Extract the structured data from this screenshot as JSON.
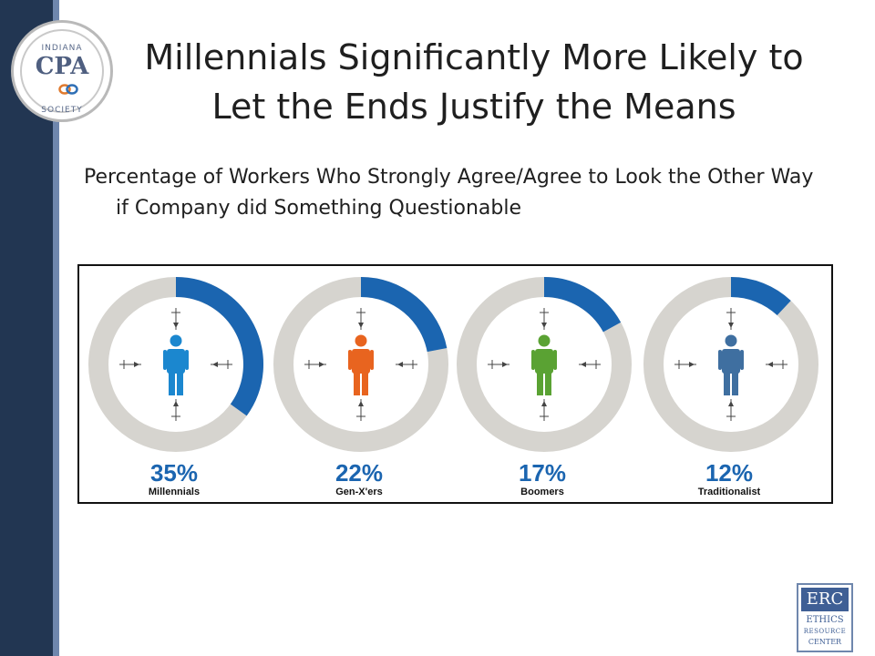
{
  "logo": {
    "top": "INDIANA",
    "mid": "CPA",
    "bottom": "SOCIETY"
  },
  "title": "Millennials Significantly More Likely to Let the Ends Justify the Means",
  "subtitle": "Percentage of Workers Who Strongly Agree/Agree to Look the Other Way if Company did Something Questionable",
  "chart_data": {
    "type": "pie",
    "categories": [
      "Millennials",
      "Gen-X'ers",
      "Boomers",
      "Traditionalist"
    ],
    "values": [
      35,
      22,
      17,
      12
    ],
    "value_labels": [
      "35%",
      "22%",
      "17%",
      "12%"
    ],
    "unit": "%",
    "figure_colors": [
      "#1b87cf",
      "#e8641f",
      "#5aa233",
      "#3f6fa0"
    ],
    "ring_color": "#1b65b0",
    "ring_track_color": "#d6d4cf"
  },
  "footer_logo": {
    "head": "ERC",
    "line1": "ETHICS",
    "line2": "RESOURCE",
    "line3": "CENTER"
  }
}
